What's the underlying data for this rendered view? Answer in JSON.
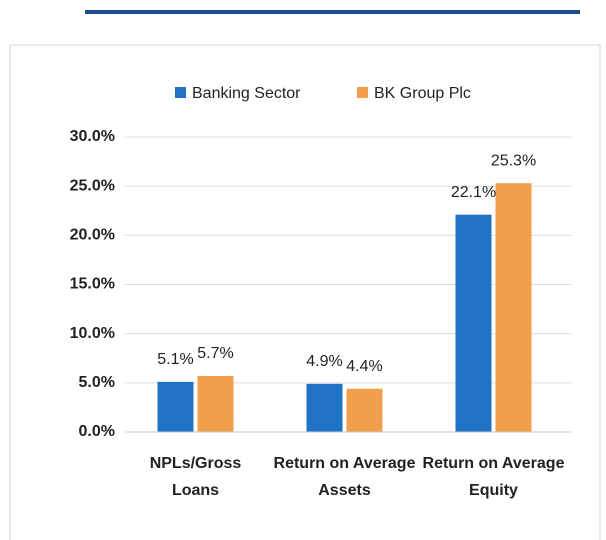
{
  "chart_data": {
    "type": "bar",
    "categories": [
      "NPLs/Gross Loans",
      "Return on Average Assets",
      "Return on Average Equity"
    ],
    "series": [
      {
        "name": "Banking Sector",
        "color": "#1f72c6",
        "values": [
          5.1,
          4.9,
          22.1
        ],
        "value_labels": [
          "5.1%",
          "4.9%",
          "22.1%"
        ]
      },
      {
        "name": "BK Group Plc",
        "color": "#f0a04a",
        "values": [
          5.7,
          4.4,
          25.3
        ],
        "value_labels": [
          "5.7%",
          "4.4%",
          "25.3%"
        ]
      }
    ],
    "ylim": [
      0,
      30
    ],
    "yticks": [
      {
        "value": 0,
        "label": "0.0%"
      },
      {
        "value": 5,
        "label": "5.0%"
      },
      {
        "value": 10,
        "label": "10.0%"
      },
      {
        "value": 15,
        "label": "15.0%"
      },
      {
        "value": 20,
        "label": "20.0%"
      },
      {
        "value": 25,
        "label": "25.0%"
      },
      {
        "value": 30,
        "label": "30.0%"
      }
    ],
    "grid": true,
    "legend": "top"
  }
}
